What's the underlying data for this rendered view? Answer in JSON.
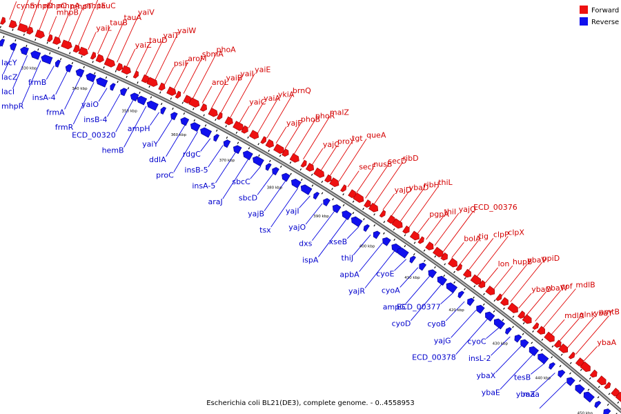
{
  "title": "Escherichia coli BL21(DE3), complete genome. - 0..4558953",
  "legend": [
    {
      "label": "Forward",
      "color": "#ee1111",
      "strand": "fwd"
    },
    {
      "label": "Reverse",
      "color": "#1111ee",
      "strand": "rev"
    }
  ],
  "colors": {
    "forward": "#ee1111",
    "reverse": "#1111ee",
    "backbone": "#777777"
  },
  "axis_ticks": [
    "330 kbp",
    "340 kbp",
    "350 kbp",
    "360 kbp",
    "370 kbp",
    "380 kbp",
    "390 kbp",
    "400 kbp",
    "410 kbp",
    "420 kbp",
    "430 kbp",
    "440 kbp",
    "450 kbp"
  ],
  "forward_genes": [
    "cynS",
    "mhpD",
    "mhpC",
    "mhpA",
    "mhpB",
    "mhpT",
    "mhpE",
    "tauC",
    "yaiL",
    "tauB",
    "tauA",
    "yaiV",
    "yaiZ",
    "tauD",
    "yaiT",
    "yaiW",
    "psiF",
    "aroM",
    "sbmA",
    "phoA",
    "aroL",
    "yaiB",
    "yaiI",
    "yaiE",
    "yaiC",
    "yaiA",
    "ykiA",
    "brnQ",
    "yajF",
    "phoB",
    "phoR",
    "malZ",
    "yajC",
    "proY",
    "tgt",
    "queA",
    "secF",
    "nusB",
    "secD",
    "ribD",
    "yajD",
    "ybaD",
    "ribH",
    "thiL",
    "pgpA",
    "thiI",
    "yajQ",
    "ECD_00376",
    "bolA",
    "tig",
    "clpP",
    "clpX",
    "lon",
    "hupB",
    "ybaV",
    "ppiD",
    "ybaO",
    "ybaW",
    "cof",
    "mdlB",
    "mdlA",
    "glnK",
    "ybaY",
    "amtB",
    "ybaA"
  ],
  "reverse_genes": [
    "lacY",
    "lacZ",
    "lacI",
    "mhpR",
    "frmB",
    "insA-4",
    "frmA",
    "frmR",
    "yaiO",
    "insB-4",
    "ECD_00320",
    "hemB",
    "ampH",
    "yaiY",
    "ddlA",
    "proC",
    "rdgC",
    "insB-5",
    "insA-5",
    "araJ",
    "sbcC",
    "sbcD",
    "yajB",
    "tsx",
    "yajI",
    "yajO",
    "dxs",
    "ispA",
    "xseB",
    "thiJ",
    "apbA",
    "yajR",
    "cyoE",
    "cyoA",
    "ampG",
    "cyoD",
    "ECD_00377",
    "cyoB",
    "yajG",
    "ECD_00378",
    "cyoC",
    "insL-2",
    "ybaX",
    "ybaE",
    "tesB",
    "ybaZ",
    "maa"
  ]
}
